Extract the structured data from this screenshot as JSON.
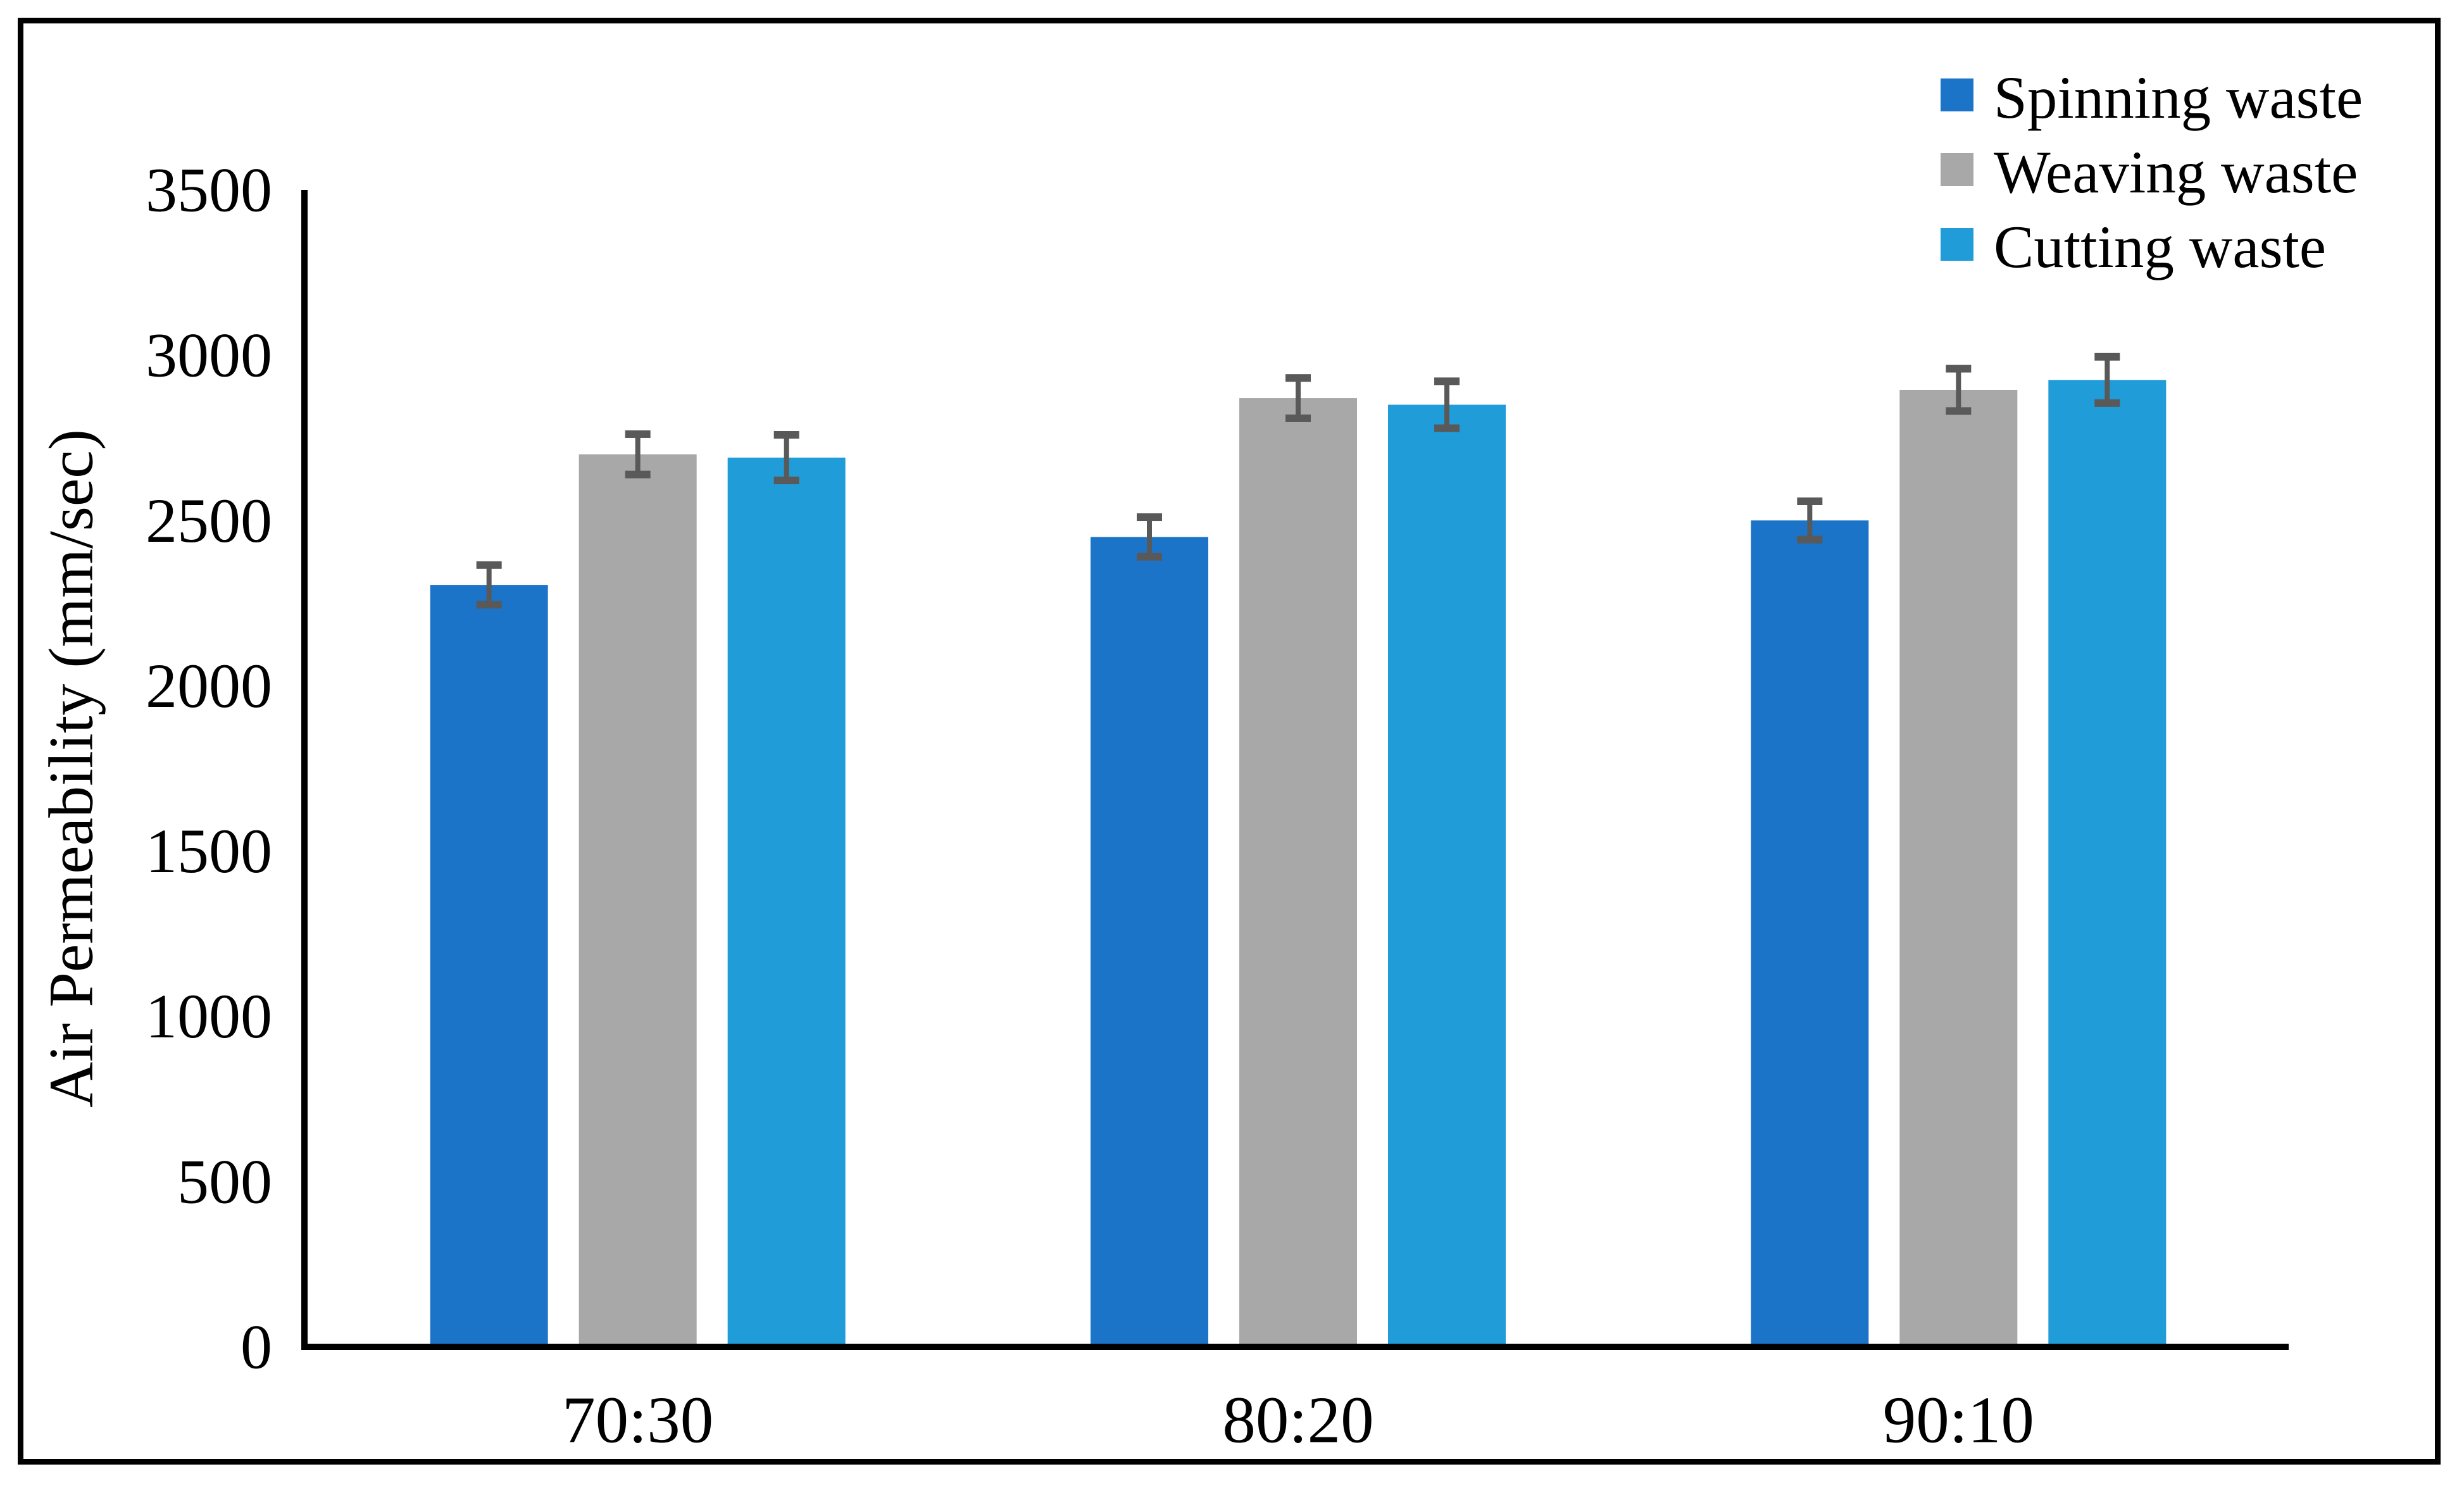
{
  "chart_data": {
    "type": "bar",
    "title": "",
    "categories": [
      "70:30",
      "80:20",
      "90:10"
    ],
    "series": [
      {
        "name": "Spinning waste",
        "color": "#1B74C8",
        "values": [
          2305,
          2450,
          2500
        ],
        "errors": [
          60,
          60,
          58
        ]
      },
      {
        "name": "Weaving waste",
        "color": "#A8A8A8",
        "values": [
          2700,
          2870,
          2895
        ],
        "errors": [
          61,
          61,
          64
        ]
      },
      {
        "name": "Cutting waste",
        "color": "#209CD9",
        "values": [
          2690,
          2850,
          2925
        ],
        "errors": [
          69,
          71,
          70
        ]
      }
    ],
    "xlabel": "",
    "ylabel": "Air Permeability (mm/sec)",
    "ylim": [
      0,
      3500
    ],
    "ytick_step": 500,
    "yticks": [
      0,
      500,
      1000,
      1500,
      2000,
      2500,
      3000,
      3500
    ],
    "grid": false,
    "legend_position": "top-right",
    "error_bar_color": "#595959",
    "axis_color": "#000000",
    "frame_color": "#000000"
  }
}
